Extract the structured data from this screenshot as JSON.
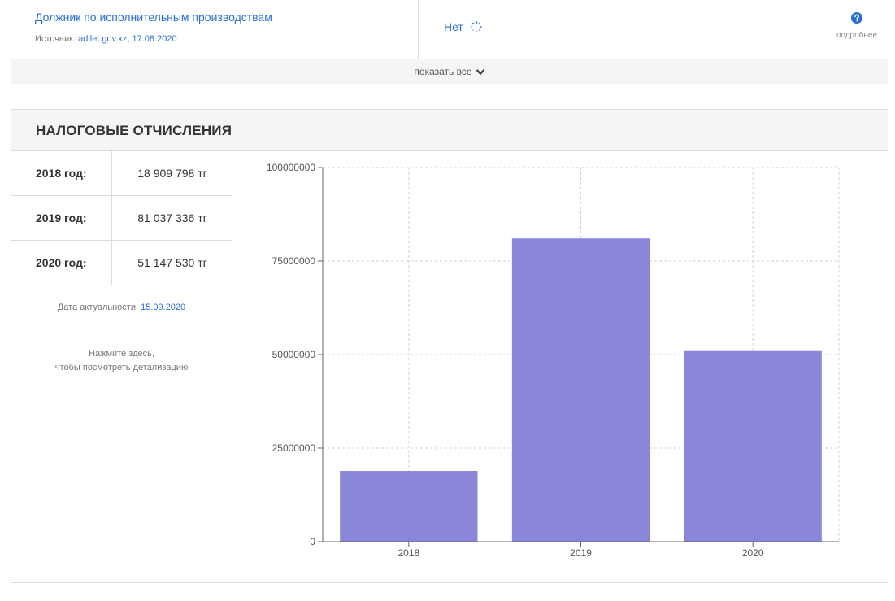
{
  "debtor": {
    "title": "Должник по исполнительным производствам",
    "source_prefix": "Источник:",
    "source_link": "adilet.gov.kz, 17.08.2020",
    "status": "Нет",
    "more_label": "подробнее"
  },
  "show_all": {
    "label": "показать все"
  },
  "tax": {
    "title": "НАЛОГОВЫЕ ОТЧИСЛЕНИЯ",
    "rows": [
      {
        "year": "2018 год:",
        "amount": "18 909 798 тг"
      },
      {
        "year": "2019 год:",
        "amount": "81 037 336 тг"
      },
      {
        "year": "2020 год:",
        "amount": "51 147 530 тг"
      }
    ],
    "actuality_label": "Дата актуальности:",
    "actuality_date": "15.09.2020",
    "detail_line1": "Нажмите здесь,",
    "detail_line2": "чтобы посмотреть детализацию"
  },
  "colors": {
    "accent": "#2a6fcf",
    "bar": "#8a86d9",
    "grid": "#d0d0d0"
  },
  "icons": {
    "help": "question-circle-icon",
    "spinner": "loading-spinner-icon",
    "chevron": "chevron-down-icon"
  },
  "chart_data": {
    "type": "bar",
    "categories": [
      "2018",
      "2019",
      "2020"
    ],
    "values": [
      18909798,
      81037336,
      51147530
    ],
    "ylim": [
      0,
      100000000
    ],
    "yticks": [
      "0",
      "25000000",
      "50000000",
      "75000000",
      "100000000"
    ],
    "ytick_values": [
      0,
      25000000,
      50000000,
      75000000,
      100000000
    ],
    "grid": true,
    "title": "",
    "xlabel": "",
    "ylabel": ""
  }
}
